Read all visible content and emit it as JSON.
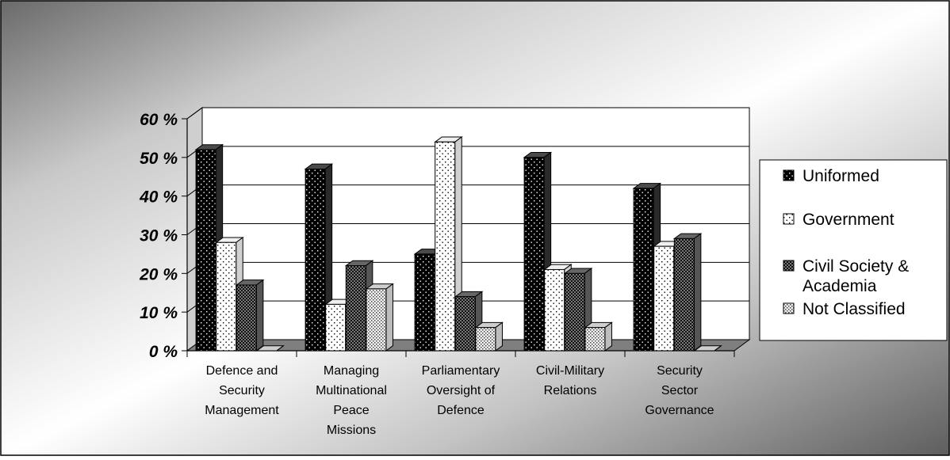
{
  "chart_data": {
    "type": "bar",
    "title": "",
    "xlabel": "",
    "ylabel": "",
    "categories": [
      [
        "Defence and",
        "Security",
        "Management"
      ],
      [
        "Managing",
        "Multinational",
        "Peace",
        "Missions"
      ],
      [
        "Parliamentary",
        "Oversight of",
        "Defence"
      ],
      [
        "Civil-Military",
        "Relations"
      ],
      [
        "Security",
        "Sector",
        "Governance"
      ]
    ],
    "series": [
      {
        "name": "Uniformed",
        "values": [
          52,
          47,
          25,
          50,
          42
        ],
        "color": "#000000",
        "pattern": "black-dots"
      },
      {
        "name": "Government",
        "values": [
          28,
          12,
          54,
          21,
          27
        ],
        "color": "#ffffff",
        "pattern": "white-dots"
      },
      {
        "name": "Civil Society & Academia",
        "name_lines": [
          "Civil Society &",
          "Academia"
        ],
        "values": [
          17,
          22,
          14,
          20,
          29
        ],
        "color": "#333333",
        "pattern": "checker"
      },
      {
        "name": "Not Classified",
        "values": [
          0,
          16,
          6,
          6,
          0
        ],
        "color": "#dddddd",
        "pattern": "light-dots"
      }
    ],
    "y_ticks": [
      "0 %",
      "10 %",
      "20 %",
      "30 %",
      "40 %",
      "50 %",
      "60 %"
    ],
    "ylim": [
      0,
      60
    ],
    "grid": true,
    "legend_position": "right",
    "style": "3d-clustered-column"
  }
}
